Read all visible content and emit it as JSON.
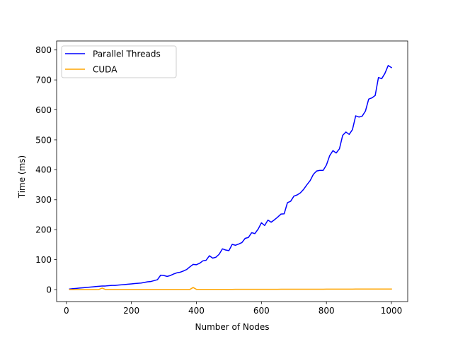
{
  "chart_data": {
    "type": "line",
    "title": "",
    "xlabel": "Number of Nodes",
    "ylabel": "Time (ms)",
    "xlim": [
      -30,
      1050
    ],
    "ylim": [
      -40,
      830
    ],
    "xticks": [
      0,
      200,
      400,
      600,
      800,
      1000
    ],
    "yticks": [
      0,
      100,
      200,
      300,
      400,
      500,
      600,
      700,
      800
    ],
    "legend_position": "top-left",
    "grid": false,
    "series": [
      {
        "name": "Parallel Threads",
        "color": "#0000ff",
        "x": [
          10,
          20,
          30,
          40,
          50,
          60,
          70,
          80,
          90,
          100,
          110,
          120,
          130,
          140,
          150,
          160,
          170,
          180,
          190,
          200,
          210,
          220,
          230,
          240,
          250,
          260,
          270,
          280,
          290,
          300,
          310,
          320,
          330,
          340,
          350,
          360,
          370,
          380,
          390,
          400,
          410,
          420,
          430,
          440,
          450,
          460,
          470,
          480,
          490,
          500,
          510,
          520,
          530,
          540,
          550,
          560,
          570,
          580,
          590,
          600,
          610,
          620,
          630,
          640,
          650,
          660,
          670,
          680,
          690,
          700,
          710,
          720,
          730,
          740,
          750,
          760,
          770,
          780,
          790,
          800,
          810,
          820,
          830,
          840,
          850,
          860,
          870,
          880,
          890,
          900,
          910,
          920,
          930,
          940,
          950,
          960,
          970,
          980,
          990,
          1000
        ],
        "y": [
          2,
          3,
          4,
          5,
          6,
          7,
          8,
          9,
          10,
          11,
          12,
          12,
          13,
          14,
          14,
          15,
          16,
          17,
          18,
          19,
          20,
          21,
          22,
          24,
          26,
          27,
          30,
          33,
          48,
          47,
          44,
          47,
          52,
          56,
          58,
          62,
          67,
          76,
          84,
          83,
          88,
          96,
          98,
          113,
          105,
          108,
          118,
          136,
          132,
          130,
          151,
          148,
          152,
          157,
          171,
          174,
          190,
          187,
          202,
          223,
          214,
          232,
          225,
          233,
          242,
          252,
          253,
          290,
          295,
          312,
          316,
          323,
          335,
          350,
          364,
          385,
          396,
          398,
          398,
          416,
          447,
          464,
          456,
          470,
          515,
          526,
          518,
          534,
          580,
          576,
          579,
          596,
          636,
          640,
          648,
          708,
          704,
          722,
          748,
          741
        ]
      },
      {
        "name": "CUDA",
        "color": "#ffa500",
        "x": [
          10,
          20,
          30,
          40,
          50,
          60,
          70,
          80,
          90,
          100,
          110,
          120,
          130,
          140,
          150,
          160,
          170,
          180,
          190,
          200,
          210,
          220,
          230,
          240,
          250,
          260,
          270,
          280,
          290,
          300,
          310,
          320,
          330,
          340,
          350,
          360,
          370,
          380,
          390,
          400,
          410,
          420,
          430,
          440,
          450,
          460,
          470,
          480,
          490,
          500,
          510,
          520,
          530,
          540,
          550,
          560,
          570,
          580,
          590,
          600,
          610,
          620,
          630,
          640,
          650,
          660,
          670,
          680,
          690,
          700,
          710,
          720,
          730,
          740,
          750,
          760,
          770,
          780,
          790,
          800,
          810,
          820,
          830,
          840,
          850,
          860,
          870,
          880,
          890,
          900,
          910,
          920,
          930,
          940,
          950,
          960,
          970,
          980,
          990,
          1000
        ],
        "y": [
          0,
          0,
          0,
          0,
          0,
          0,
          0,
          0,
          0,
          0.5,
          5,
          0.5,
          0.5,
          0.5,
          0.5,
          0.5,
          0.5,
          0.5,
          0.5,
          0.5,
          0.5,
          0.5,
          0.5,
          0.5,
          0.5,
          0.5,
          0.5,
          0.5,
          0.5,
          0.5,
          0.5,
          0.5,
          0.5,
          0.5,
          0.5,
          0.5,
          0.5,
          0.5,
          7,
          0.8,
          0.8,
          0.8,
          0.8,
          0.8,
          0.8,
          0.8,
          0.8,
          0.8,
          0.8,
          0.8,
          0.8,
          1,
          1,
          1,
          1,
          1,
          1,
          1,
          1,
          1,
          1,
          1,
          1,
          1,
          1,
          1.2,
          1.2,
          1.2,
          1.2,
          1.2,
          1.2,
          1.2,
          1.3,
          1.3,
          1.3,
          1.4,
          1.4,
          1.4,
          1.4,
          1.5,
          1.5,
          1.5,
          1.5,
          1.5,
          1.6,
          1.6,
          1.6,
          1.6,
          1.7,
          1.7,
          1.7,
          1.7,
          1.8,
          1.8,
          1.8,
          1.9,
          1.9,
          1.9,
          2,
          2
        ]
      }
    ]
  }
}
